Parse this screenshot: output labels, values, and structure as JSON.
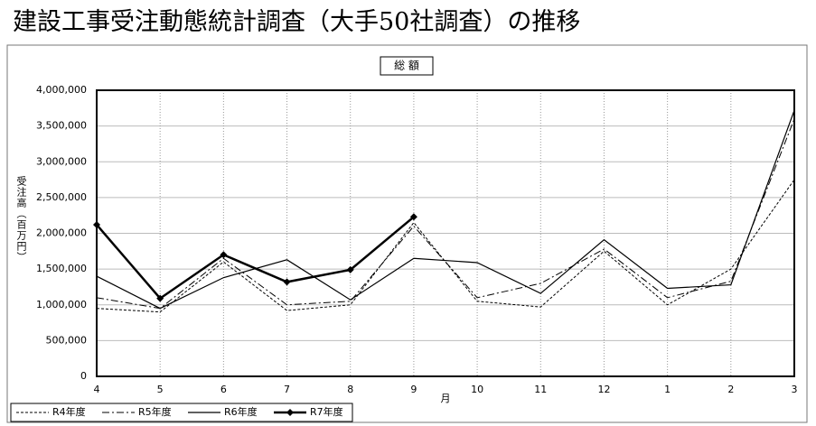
{
  "chart_data": {
    "type": "line",
    "title": "建設工事受注動態統計調査（大手50社調査）の推移",
    "subtitle": "総 額",
    "y_label": "受注高（百万円）",
    "x_label": "月",
    "categories": [
      "4",
      "5",
      "6",
      "7",
      "8",
      "9",
      "10",
      "11",
      "12",
      "1",
      "2",
      "3"
    ],
    "series": [
      {
        "name": "R4年度",
        "color": "#000000",
        "line_style": "dashed",
        "values": [
          950000,
          900000,
          1600000,
          920000,
          1000000,
          2150000,
          1050000,
          970000,
          1750000,
          1000000,
          1500000,
          2750000
        ]
      },
      {
        "name": "R5年度",
        "color": "#000000",
        "line_style": "dashdot",
        "values": [
          1100000,
          950000,
          1650000,
          1000000,
          1050000,
          2100000,
          1100000,
          1300000,
          1780000,
          1100000,
          1330000,
          3600000
        ]
      },
      {
        "name": "R6年度",
        "color": "#000000",
        "line_style": "solid",
        "values": [
          1400000,
          950000,
          1380000,
          1630000,
          1070000,
          1650000,
          1590000,
          1160000,
          1910000,
          1230000,
          1280000,
          3720000
        ]
      },
      {
        "name": "R7年度",
        "color": "#000000",
        "line_style": "bold",
        "marker": "diamond",
        "values": [
          2120000,
          1090000,
          1700000,
          1320000,
          1490000,
          2230000,
          null,
          null,
          null,
          null,
          null,
          null
        ]
      }
    ],
    "ylim": [
      0,
      4000000
    ],
    "yticks": [
      0,
      {
        "value": 500000,
        "label": "500,000"
      },
      {
        "value": 1000000,
        "label": "1,000,000"
      },
      {
        "value": 1500000,
        "label": "1,500,000"
      },
      {
        "value": 2000000,
        "label": "2,000,000"
      },
      {
        "value": 2500000,
        "label": "2,500,000"
      },
      {
        "value": 3000000,
        "label": "3,000,000"
      },
      {
        "value": 3500000,
        "label": "3,500,000"
      },
      {
        "value": 4000000,
        "label": "4,000,000"
      }
    ],
    "grid": true,
    "legend": "bottom-left"
  }
}
